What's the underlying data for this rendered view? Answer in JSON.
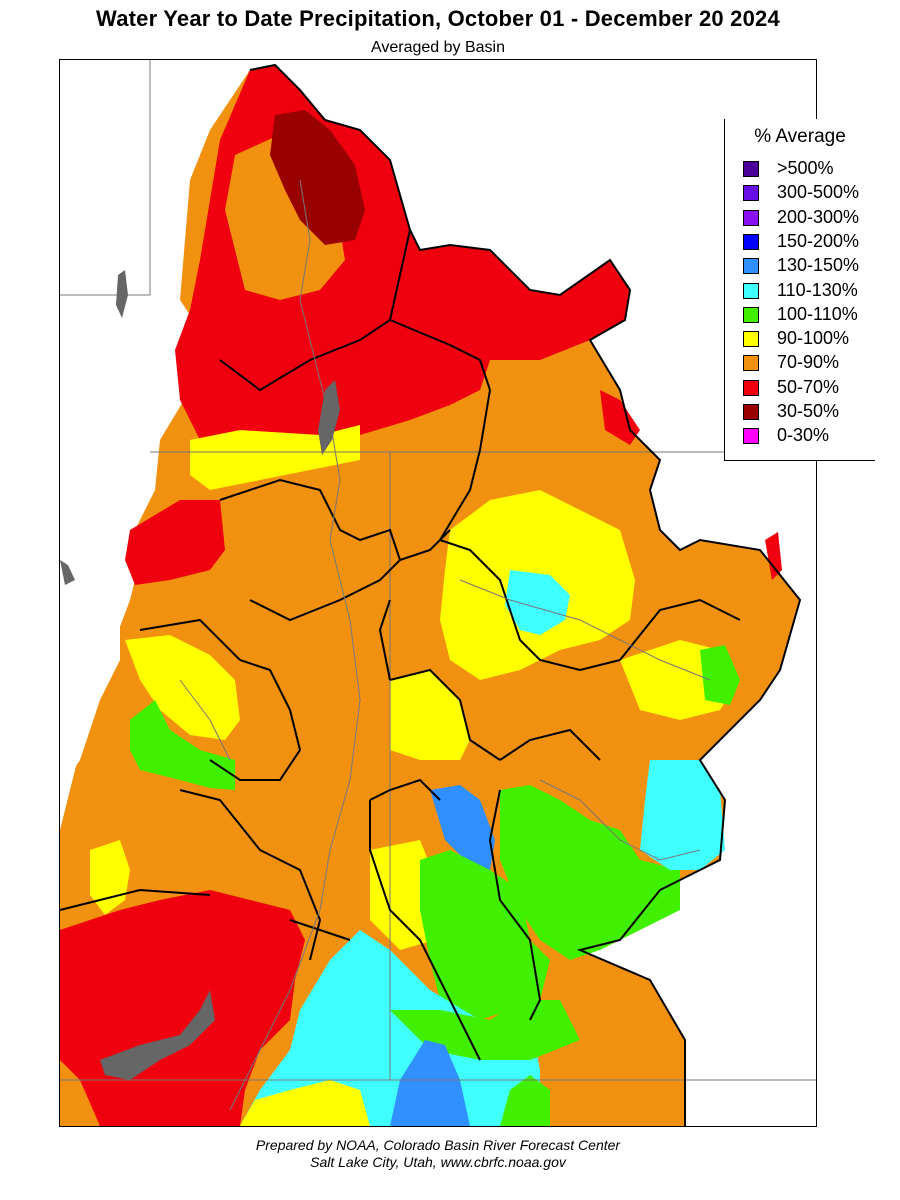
{
  "header": {
    "title": "Water Year to Date Precipitation, October 01  - December 20 2024",
    "subtitle": "Averaged by Basin"
  },
  "legend": {
    "title": "% Average",
    "items": [
      {
        "label": ">500%",
        "color": "#4b0099"
      },
      {
        "label": "300-500%",
        "color": "#6a0ee6"
      },
      {
        "label": "200-300%",
        "color": "#8a10f2"
      },
      {
        "label": "150-200%",
        "color": "#0000ff"
      },
      {
        "label": "130-150%",
        "color": "#3090ff"
      },
      {
        "label": "110-130%",
        "color": "#40ffff"
      },
      {
        "label": "100-110%",
        "color": "#40f000"
      },
      {
        "label": "90-100%",
        "color": "#ffff00"
      },
      {
        "label": "70-90%",
        "color": "#f29010"
      },
      {
        "label": "50-70%",
        "color": "#f0000e"
      },
      {
        "label": "30-50%",
        "color": "#990000"
      },
      {
        "label": "0-30%",
        "color": "#ff00ff"
      }
    ]
  },
  "footer": {
    "line1": "Prepared by NOAA, Colorado Basin River Forecast Center",
    "line2": "Salt Lake City, Utah, www.cbrfc.noaa.gov"
  }
}
